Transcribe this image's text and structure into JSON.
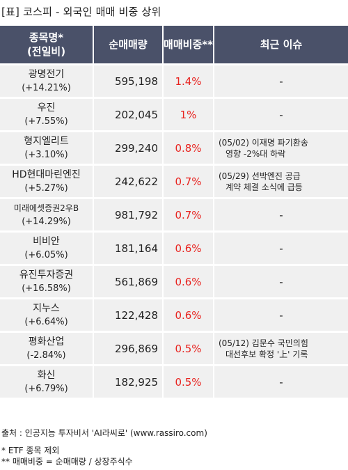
{
  "title": "[표] 코스피 - 외국인 매매 비중 상위",
  "headers": {
    "name_line1": "종목명*",
    "name_line2": "(전일비)",
    "volume": "순매매량",
    "ratio": "매매비중**",
    "issue": "최근 이슈"
  },
  "rows": [
    {
      "name": "광명전기",
      "change": "(+14.21%)",
      "volume": "595,198",
      "ratio": "1.4%",
      "issue_line1": "-",
      "issue_line2": ""
    },
    {
      "name": "우진",
      "change": "(+7.55%)",
      "volume": "202,045",
      "ratio": "1%",
      "issue_line1": "-",
      "issue_line2": ""
    },
    {
      "name": "형지엘리트",
      "change": "(+3.10%)",
      "volume": "299,240",
      "ratio": "0.8%",
      "issue_line1": "(05/02) 이재명 파기환송",
      "issue_line2": "영향 -2%대 하락"
    },
    {
      "name": "HD현대마린엔진",
      "change": "(+5.27%)",
      "volume": "242,622",
      "ratio": "0.7%",
      "issue_line1": "(05/29) 선박엔진 공급",
      "issue_line2": "계약 체결 소식에 급등"
    },
    {
      "name": "미래에셋증권2우B",
      "change": "(+14.29%)",
      "volume": "981,792",
      "ratio": "0.7%",
      "issue_line1": "-",
      "issue_line2": ""
    },
    {
      "name": "비비안",
      "change": "(+6.05%)",
      "volume": "181,164",
      "ratio": "0.6%",
      "issue_line1": "-",
      "issue_line2": ""
    },
    {
      "name": "유진투자증권",
      "change": "(+16.58%)",
      "volume": "561,869",
      "ratio": "0.6%",
      "issue_line1": "-",
      "issue_line2": ""
    },
    {
      "name": "지누스",
      "change": "(+6.64%)",
      "volume": "122,428",
      "ratio": "0.6%",
      "issue_line1": "-",
      "issue_line2": ""
    },
    {
      "name": "평화산업",
      "change": "(-2.84%)",
      "volume": "296,869",
      "ratio": "0.5%",
      "issue_line1": "(05/12) 김문수 국민의힘",
      "issue_line2": "대선후보 확정 '上' 기록"
    },
    {
      "name": "화신",
      "change": "(+6.79%)",
      "volume": "182,925",
      "ratio": "0.5%",
      "issue_line1": "-",
      "issue_line2": ""
    }
  ],
  "footer": {
    "source": "출처 : 인공지능 투자비서 'AI라씨로' (www.rassiro.com)",
    "note1": "* ETF 종목 제외",
    "note2": "** 매매비중 = 순매매량 / 상장주식수"
  },
  "colors": {
    "header_bg": "#4a5169",
    "row_bg": "#f0f0f0",
    "ratio_text": "#e8231f"
  }
}
